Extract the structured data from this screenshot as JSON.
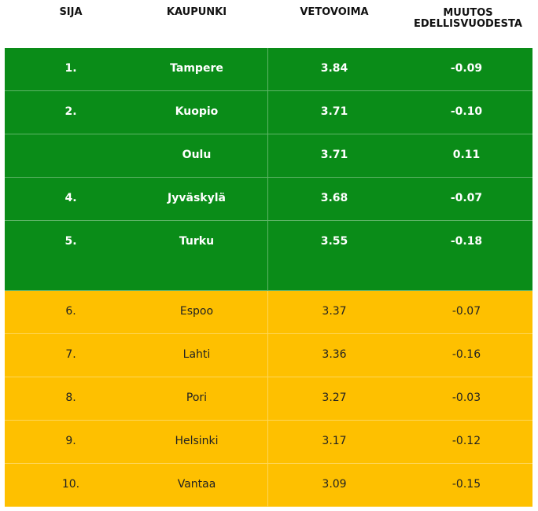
{
  "table": {
    "headers": {
      "rank": "SIJA",
      "city": "KAUPUNKI",
      "attraction": "VETOVOIMA",
      "change_line1": "MUUTOS",
      "change_line2": "EDELLISVUODESTA"
    },
    "colors": {
      "top_group": "#0a8c18",
      "bottom_group": "#fec000"
    },
    "rows": [
      {
        "rank": "1.",
        "city": "Tampere",
        "attraction": "3.84",
        "change": "-0.09",
        "group": "top"
      },
      {
        "rank": "2.",
        "city": "Kuopio",
        "attraction": "3.71",
        "change": "-0.10",
        "group": "top"
      },
      {
        "rank": "",
        "city": "Oulu",
        "attraction": "3.71",
        "change": "0.11",
        "group": "top"
      },
      {
        "rank": "4.",
        "city": "Jyväskylä",
        "attraction": "3.68",
        "change": "-0.07",
        "group": "top"
      },
      {
        "rank": "5.",
        "city": "Turku",
        "attraction": "3.55",
        "change": "-0.18",
        "group": "top"
      },
      {
        "rank": "6.",
        "city": "Espoo",
        "attraction": "3.37",
        "change": "-0.07",
        "group": "bottom"
      },
      {
        "rank": "7.",
        "city": "Lahti",
        "attraction": "3.36",
        "change": "-0.16",
        "group": "bottom"
      },
      {
        "rank": "8.",
        "city": "Pori",
        "attraction": "3.27",
        "change": "-0.03",
        "group": "bottom"
      },
      {
        "rank": "9.",
        "city": "Helsinki",
        "attraction": "3.17",
        "change": "-0.12",
        "group": "bottom"
      },
      {
        "rank": "10.",
        "city": "Vantaa",
        "attraction": "3.09",
        "change": "-0.15",
        "group": "bottom"
      }
    ]
  }
}
